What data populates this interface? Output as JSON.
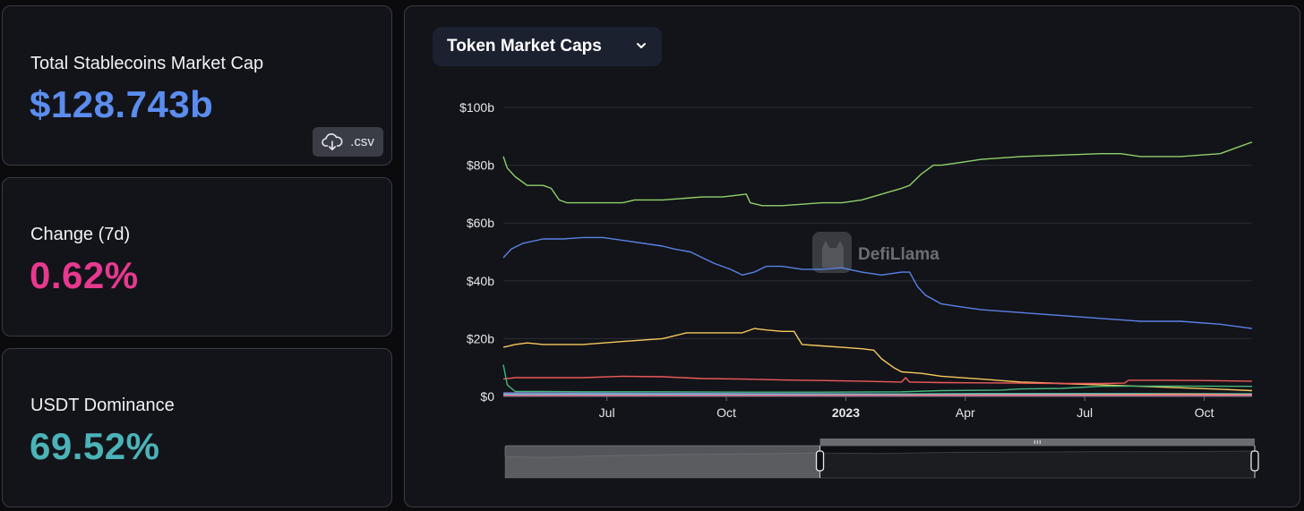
{
  "stats": {
    "total": {
      "label": "Total Stablecoins Market Cap",
      "value": "$128.743b",
      "color": "#5b8def"
    },
    "change": {
      "label": "Change (7d)",
      "value": "0.62%",
      "color": "#e6398f"
    },
    "dominance": {
      "label": "USDT Dominance",
      "value": "69.52%",
      "color": "#4bb3b8"
    }
  },
  "csv_button": {
    "label": ".csv",
    "icon": "cloud-download-icon"
  },
  "dropdown": {
    "label": "Token Market Caps",
    "icon": "chevron-down-icon"
  },
  "watermark": {
    "text": "DefiLlama",
    "icon": "llama-logo"
  },
  "chart_data": {
    "type": "line",
    "title": "",
    "xlabel": "",
    "ylabel": "",
    "ylim": [
      0,
      100
    ],
    "y_unit": "b",
    "grid": true,
    "legend": "none",
    "y_ticks": [
      "$0",
      "$20b",
      "$40b",
      "$60b",
      "$80b",
      "$100b"
    ],
    "x_ticks": [
      {
        "label": "Jul",
        "month": 2.6,
        "bold": false
      },
      {
        "label": "Oct",
        "month": 5.6,
        "bold": false
      },
      {
        "label": "2023",
        "month": 8.6,
        "bold": true
      },
      {
        "label": "Apr",
        "month": 11.6,
        "bold": false
      },
      {
        "label": "Jul",
        "month": 14.6,
        "bold": false
      },
      {
        "label": "Oct",
        "month": 17.6,
        "bold": false
      }
    ],
    "x_range_months": [
      0,
      18.8
    ],
    "series": [
      {
        "color": "#8fd16a",
        "points": [
          [
            0,
            83
          ],
          [
            0.1,
            79
          ],
          [
            0.3,
            76
          ],
          [
            0.6,
            73
          ],
          [
            1.0,
            73
          ],
          [
            1.2,
            72
          ],
          [
            1.4,
            68
          ],
          [
            1.6,
            67
          ],
          [
            2.0,
            67
          ],
          [
            3.0,
            67
          ],
          [
            3.3,
            68
          ],
          [
            4.0,
            68
          ],
          [
            5.0,
            69
          ],
          [
            5.5,
            69
          ],
          [
            6.1,
            70
          ],
          [
            6.2,
            67
          ],
          [
            6.5,
            66
          ],
          [
            7.0,
            66
          ],
          [
            8.0,
            67
          ],
          [
            8.5,
            67
          ],
          [
            9.0,
            68
          ],
          [
            9.5,
            70
          ],
          [
            10.0,
            72
          ],
          [
            10.2,
            73
          ],
          [
            10.5,
            77
          ],
          [
            10.8,
            80
          ],
          [
            11.0,
            80
          ],
          [
            11.5,
            81
          ],
          [
            12.0,
            82
          ],
          [
            13.0,
            83
          ],
          [
            14.0,
            83.5
          ],
          [
            15.0,
            84
          ],
          [
            15.5,
            84
          ],
          [
            16.0,
            83
          ],
          [
            17.0,
            83
          ],
          [
            18.0,
            84
          ],
          [
            18.4,
            86
          ],
          [
            18.8,
            88
          ]
        ]
      },
      {
        "color": "#5b82e8",
        "points": [
          [
            0,
            48
          ],
          [
            0.2,
            51
          ],
          [
            0.5,
            53
          ],
          [
            1.0,
            54.5
          ],
          [
            1.5,
            54.5
          ],
          [
            2.0,
            55
          ],
          [
            2.5,
            55
          ],
          [
            3.0,
            54
          ],
          [
            4.0,
            52
          ],
          [
            4.3,
            51
          ],
          [
            4.7,
            50
          ],
          [
            5.0,
            48
          ],
          [
            5.3,
            46
          ],
          [
            5.7,
            44
          ],
          [
            6.0,
            42
          ],
          [
            6.3,
            43
          ],
          [
            6.6,
            45
          ],
          [
            7.0,
            45
          ],
          [
            7.5,
            44
          ],
          [
            8.0,
            44
          ],
          [
            8.5,
            44.5
          ],
          [
            9.0,
            43
          ],
          [
            9.5,
            42
          ],
          [
            10.0,
            43
          ],
          [
            10.2,
            43
          ],
          [
            10.4,
            38
          ],
          [
            10.6,
            35
          ],
          [
            11.0,
            32
          ],
          [
            11.5,
            31
          ],
          [
            12.0,
            30
          ],
          [
            13.0,
            29
          ],
          [
            14.0,
            28
          ],
          [
            15.0,
            27
          ],
          [
            16.0,
            26
          ],
          [
            17.0,
            26
          ],
          [
            18.0,
            25
          ],
          [
            18.8,
            23.5
          ]
        ]
      },
      {
        "color": "#f6c95c",
        "points": [
          [
            0,
            17
          ],
          [
            0.3,
            18
          ],
          [
            0.6,
            18.5
          ],
          [
            1.0,
            18
          ],
          [
            1.5,
            18
          ],
          [
            2.0,
            18
          ],
          [
            3.0,
            19
          ],
          [
            4.0,
            20
          ],
          [
            4.3,
            21
          ],
          [
            4.6,
            22
          ],
          [
            5.0,
            22
          ],
          [
            5.5,
            22
          ],
          [
            6.0,
            22
          ],
          [
            6.3,
            23.5
          ],
          [
            6.6,
            23
          ],
          [
            7.0,
            22.5
          ],
          [
            7.3,
            22.5
          ],
          [
            7.5,
            18
          ],
          [
            8.0,
            17.5
          ],
          [
            8.5,
            17
          ],
          [
            9.0,
            16.5
          ],
          [
            9.3,
            16
          ],
          [
            9.5,
            13
          ],
          [
            9.8,
            10
          ],
          [
            10.0,
            8.5
          ],
          [
            10.5,
            8
          ],
          [
            11.0,
            7
          ],
          [
            12.0,
            6
          ],
          [
            13.0,
            5
          ],
          [
            14.0,
            4.5
          ],
          [
            15.0,
            4
          ],
          [
            16.0,
            3.5
          ],
          [
            17.0,
            3
          ],
          [
            18.0,
            2.5
          ],
          [
            18.8,
            2
          ]
        ]
      },
      {
        "color": "#ee5a5a",
        "points": [
          [
            0,
            6
          ],
          [
            0.3,
            6.5
          ],
          [
            1.0,
            6.5
          ],
          [
            2.0,
            6.5
          ],
          [
            3.0,
            7
          ],
          [
            4.0,
            6.8
          ],
          [
            5.0,
            6.2
          ],
          [
            6.0,
            6
          ],
          [
            7.0,
            5.7
          ],
          [
            8.0,
            5.5
          ],
          [
            9.0,
            5.3
          ],
          [
            10.0,
            5
          ],
          [
            10.1,
            6.5
          ],
          [
            10.2,
            5
          ],
          [
            11.0,
            4.8
          ],
          [
            12.0,
            4.7
          ],
          [
            13.0,
            4.6
          ],
          [
            14.0,
            4.5
          ],
          [
            15.0,
            4.5
          ],
          [
            15.6,
            4.6
          ],
          [
            15.7,
            5.6
          ],
          [
            16.5,
            5.6
          ],
          [
            17.5,
            5.5
          ],
          [
            18.8,
            5.3
          ]
        ]
      },
      {
        "color": "#43b97c",
        "points": [
          [
            0,
            11
          ],
          [
            0.1,
            4
          ],
          [
            0.3,
            1.7
          ],
          [
            1.0,
            1.7
          ],
          [
            2.0,
            1.6
          ],
          [
            4.0,
            1.6
          ],
          [
            6.0,
            1.5
          ],
          [
            8.0,
            1.5
          ],
          [
            10.0,
            1.6
          ],
          [
            11.0,
            2.0
          ],
          [
            12.5,
            2.2
          ],
          [
            13.0,
            2.6
          ],
          [
            14.0,
            2.8
          ],
          [
            15.0,
            3.5
          ],
          [
            16.0,
            3.6
          ],
          [
            17.0,
            3.6
          ],
          [
            18.8,
            3.5
          ]
        ]
      },
      {
        "color": "#9a7ee0",
        "points": [
          [
            0,
            1.2
          ],
          [
            3.0,
            1.1
          ],
          [
            6.0,
            1.0
          ],
          [
            9.0,
            0.9
          ],
          [
            12.0,
            0.8
          ],
          [
            15.0,
            0.7
          ],
          [
            18.8,
            0.7
          ]
        ]
      },
      {
        "color": "#4ec5c8",
        "points": [
          [
            0,
            0.8
          ],
          [
            3.0,
            0.8
          ],
          [
            6.0,
            0.7
          ],
          [
            9.0,
            0.8
          ],
          [
            12.0,
            1.0
          ],
          [
            15.0,
            1.0
          ],
          [
            18.8,
            0.9
          ]
        ]
      },
      {
        "color": "#f09a4a",
        "points": [
          [
            0,
            0.4
          ],
          [
            5.0,
            0.4
          ],
          [
            10.0,
            0.5
          ],
          [
            15.0,
            0.6
          ],
          [
            17.0,
            0.8
          ],
          [
            18.8,
            0.6
          ]
        ]
      },
      {
        "color": "#e56fb0",
        "points": [
          [
            0,
            0.3
          ],
          [
            6.0,
            0.3
          ],
          [
            12.0,
            0.3
          ],
          [
            18.8,
            0.3
          ]
        ]
      }
    ],
    "brush": {
      "selected_range": [
        0.42,
        1.0
      ],
      "overview": [
        [
          0,
          0.78
        ],
        [
          0.05,
          0.74
        ],
        [
          0.12,
          0.8
        ],
        [
          0.2,
          0.85
        ],
        [
          0.3,
          0.88
        ],
        [
          0.42,
          0.92
        ],
        [
          0.5,
          0.9
        ],
        [
          0.6,
          0.95
        ],
        [
          0.7,
          0.96
        ],
        [
          0.8,
          0.98
        ],
        [
          0.9,
          0.97
        ],
        [
          1.0,
          1.0
        ]
      ]
    }
  }
}
